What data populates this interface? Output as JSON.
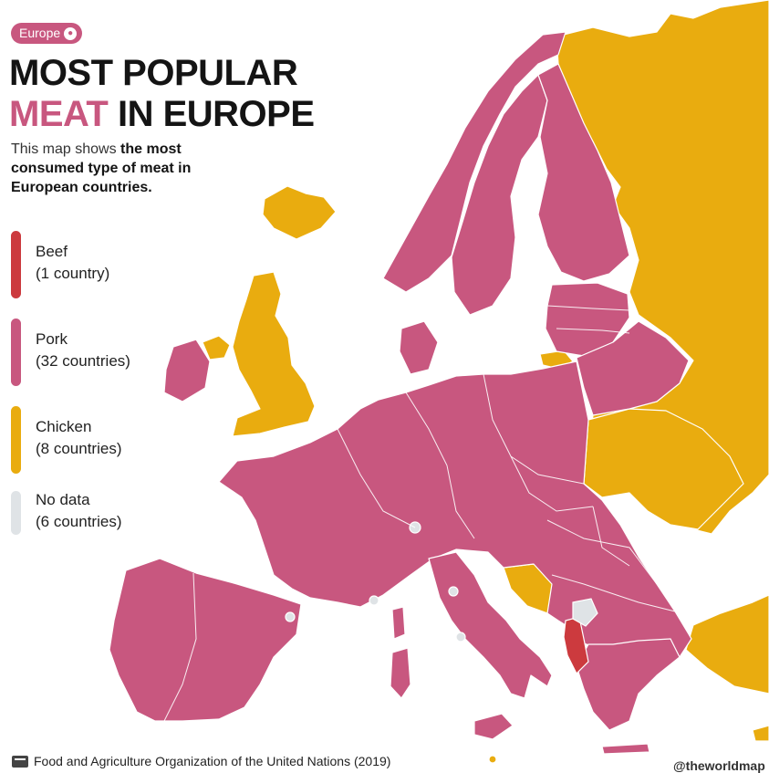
{
  "tag": {
    "label": "Europe",
    "icon": "globe-icon"
  },
  "title": {
    "line1": "MOST POPULAR",
    "line2_accent": "MEAT",
    "line2_rest": " IN EUROPE"
  },
  "subtitle": {
    "lead": "This map shows ",
    "bold": "the most consumed type of meat in European countries."
  },
  "colors": {
    "beef": "#cc3a3e",
    "pork": "#c8577f",
    "chicken": "#e9ac0f",
    "no_data": "#dfe3e6",
    "sea": "#ffffff"
  },
  "legend": [
    {
      "key": "beef",
      "label": "Beef",
      "count": "(1 country)"
    },
    {
      "key": "pork",
      "label": "Pork",
      "count": "(32 countries)"
    },
    {
      "key": "chicken",
      "label": "Chicken",
      "count": "(8 countries)"
    },
    {
      "key": "no_data",
      "label": "No data",
      "count": "(6 countries)"
    }
  ],
  "source": {
    "icon": "document-icon",
    "text": "Food and Agriculture Organization of the United Nations (2019)"
  },
  "credit": "@theworldmap"
}
